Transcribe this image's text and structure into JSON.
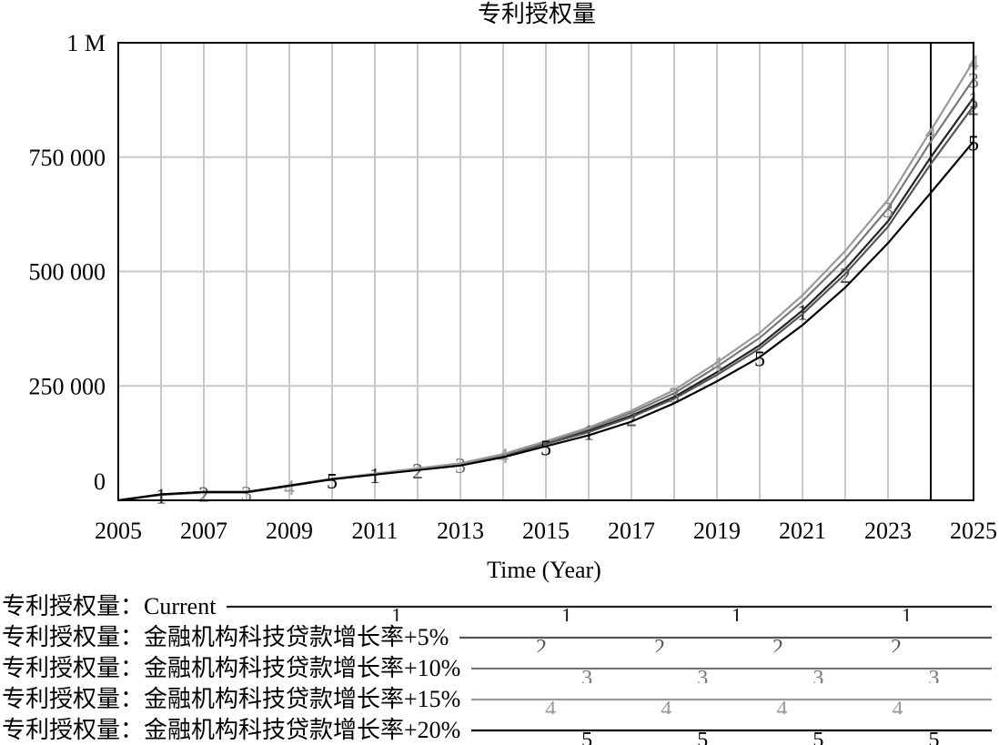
{
  "chart_data": {
    "type": "line",
    "title": "专利授权量",
    "xlabel": "Time (Year)",
    "ylabel": "",
    "x": [
      2005,
      2006,
      2007,
      2008,
      2009,
      2010,
      2011,
      2012,
      2013,
      2014,
      2015,
      2016,
      2017,
      2018,
      2019,
      2020,
      2021,
      2022,
      2023,
      2024,
      2025
    ],
    "xlim": [
      2005,
      2025
    ],
    "ylim": [
      0,
      1000000
    ],
    "x_ticks": [
      "2005",
      "2007",
      "2009",
      "2011",
      "2013",
      "2015",
      "2017",
      "2019",
      "2021",
      "2023",
      "2025"
    ],
    "y_ticks": [
      {
        "value": 0,
        "label": "0"
      },
      {
        "value": 250000,
        "label": "250 000"
      },
      {
        "value": 500000,
        "label": "500 000"
      },
      {
        "value": 750000,
        "label": "750 000"
      },
      {
        "value": 1000000,
        "label": "1 M"
      }
    ],
    "grid": true,
    "reference_line_x": 2024,
    "series": [
      {
        "name": "专利授权量：Current",
        "marker": "1",
        "color": "#222222",
        "values": [
          0,
          13000,
          18000,
          18000,
          32000,
          47000,
          58000,
          69000,
          80000,
          99000,
          125000,
          152000,
          185000,
          226000,
          280000,
          339000,
          415000,
          505000,
          610000,
          750000,
          880000
        ]
      },
      {
        "name": "专利授权量：金融机构科技贷款增长率+5%",
        "marker": "2",
        "color": "#555555",
        "values": [
          0,
          12000,
          17000,
          17000,
          31000,
          46000,
          57000,
          68000,
          79000,
          97000,
          123000,
          149000,
          182000,
          222000,
          274000,
          332000,
          407000,
          495000,
          598000,
          735000,
          862000
        ]
      },
      {
        "name": "专利授权量：金融机构科技贷款增长率+10%",
        "marker": "3",
        "color": "#777777",
        "values": [
          0,
          12500,
          18000,
          18000,
          31500,
          46500,
          58000,
          69000,
          80000,
          100000,
          127000,
          156000,
          191000,
          234000,
          292000,
          355000,
          435000,
          528000,
          638000,
          784000,
          921000
        ]
      },
      {
        "name": "专利授权量：金融机构科技贷款增长率+15%",
        "marker": "4",
        "color": "#999999",
        "values": [
          0,
          12500,
          18000,
          18000,
          32000,
          47000,
          58500,
          70000,
          81000,
          101000,
          129000,
          159000,
          196000,
          241000,
          301000,
          366000,
          448000,
          545000,
          657000,
          808000,
          960000
        ]
      },
      {
        "name": "专利授权量：金融机构科技贷款增长率+20%",
        "marker": "5",
        "color": "#000000",
        "values": [
          0,
          13000,
          18000,
          18000,
          32000,
          46000,
          56000,
          66000,
          76000,
          94000,
          118000,
          142000,
          172000,
          212000,
          260000,
          313000,
          383000,
          465000,
          562000,
          672000,
          784000
        ]
      }
    ]
  }
}
